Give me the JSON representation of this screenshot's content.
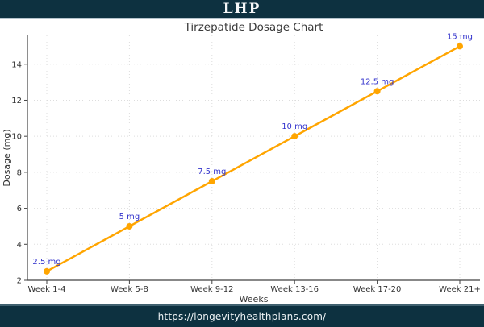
{
  "header": {
    "logo_text": "LHP",
    "bg_color": "#0d3140"
  },
  "footer": {
    "url_text": "https://longevityhealthplans.com/"
  },
  "chart_data": {
    "type": "line",
    "title": "Tirzepatide Dosage Chart",
    "xlabel": "Weeks",
    "ylabel": "Dosage (mg)",
    "categories": [
      "Week 1-4",
      "Week 5-8",
      "Week 9-12",
      "Week 13-16",
      "Week 17-20",
      "Week 21+"
    ],
    "values": [
      2.5,
      5,
      7.5,
      10,
      12.5,
      15
    ],
    "point_labels": [
      "2.5 mg",
      "5 mg",
      "7.5 mg",
      "10 mg",
      "12.5 mg",
      "15 mg"
    ],
    "yticks": [
      2,
      4,
      6,
      8,
      10,
      12,
      14
    ],
    "ylim": [
      2,
      15.6
    ],
    "grid": true,
    "legend": "none",
    "line_color": "#FFA500",
    "point_color": "#FFA500",
    "point_label_color": "#3333cc",
    "grid_color": "#dddddd",
    "axis_color": "#424242",
    "tick_label_color": "#333333",
    "title_color": "#3a3a3a"
  }
}
